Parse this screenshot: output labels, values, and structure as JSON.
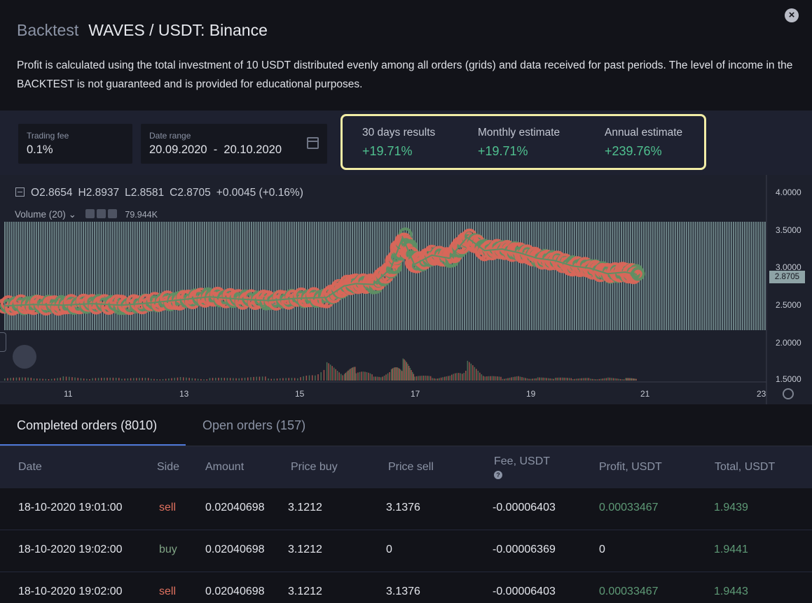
{
  "header": {
    "title_prefix": "Backtest",
    "title": "WAVES / USDT: Binance",
    "disclaimer": "Profit is calculated using the total investment of 10 USDT distributed evenly among all orders (grids) and data received for past periods. The level of income in the BACKTEST is not guaranteed and is provided for educational purposes.",
    "close_icon": "close-icon"
  },
  "settings": {
    "trading_fee_label": "Trading fee",
    "trading_fee_value": "0.1%",
    "date_range_label": "Date range",
    "date_range_value": "20.09.2020  -  20.10.2020",
    "calendar_icon": "calendar-icon"
  },
  "results": [
    {
      "label": "30 days results",
      "value": "+19.71%"
    },
    {
      "label": "Monthly estimate",
      "value": "+19.71%"
    },
    {
      "label": "Annual estimate",
      "value": "+239.76%"
    }
  ],
  "chart": {
    "ohlc": {
      "o_label": "O",
      "o": "2.8654",
      "h_label": "H",
      "h": "2.8937",
      "l_label": "L",
      "l": "2.8581",
      "c_label": "C",
      "c": "2.8705",
      "change": "+0.0045 (+0.16%)"
    },
    "volume_label": "Volume (20)",
    "volume_value": "79.944K",
    "last_price": "2.8705",
    "price_ticks": [
      "4.0000",
      "3.5000",
      "3.0000",
      "2.5000",
      "2.0000",
      "1.5000"
    ],
    "time_ticks": [
      "11",
      "13",
      "15",
      "17",
      "19",
      "21",
      "23"
    ],
    "colors": {
      "buy": "#5e8f64",
      "sell": "#d9665a",
      "grid_bars": "#7d9798",
      "background": "#1d202c"
    }
  },
  "chart_data": {
    "type": "line",
    "x": [
      10,
      10.5,
      11,
      11.5,
      12,
      12.5,
      13,
      13.5,
      14,
      14.5,
      15,
      15.5,
      15.8,
      16,
      16.3,
      16.6,
      16.8,
      17,
      17.3,
      17.6,
      17.9,
      18.2,
      18.5,
      18.8,
      19.1,
      19.4,
      19.7,
      20,
      20.3,
      20.6,
      20.8
    ],
    "series": [
      {
        "values": [
          2.46,
          2.48,
          2.47,
          2.49,
          2.47,
          2.5,
          2.54,
          2.58,
          2.55,
          2.53,
          2.56,
          2.57,
          2.72,
          2.75,
          2.74,
          2.95,
          3.35,
          3.0,
          3.12,
          3.08,
          3.35,
          3.18,
          3.2,
          3.15,
          3.08,
          3.05,
          2.98,
          2.95,
          2.88,
          2.9,
          2.87
        ]
      }
    ],
    "ylim": [
      1.5,
      4.0
    ],
    "xlim": [
      10,
      23
    ],
    "volume": [
      0.1,
      0.05,
      0.08,
      0.05,
      0.06,
      0.05,
      0.07,
      0.05,
      0.06,
      0.08,
      0.05,
      0.35,
      0.15,
      0.3,
      0.1,
      0.22,
      0.45,
      0.12,
      0.08,
      0.1,
      0.38,
      0.1,
      0.07,
      0.09,
      0.06,
      0.06,
      0.05,
      0.05,
      0.06,
      0.05,
      0.04
    ],
    "grid": false,
    "legend": "none"
  },
  "tabs": [
    {
      "label": "Completed orders (8010)",
      "active": true
    },
    {
      "label": "Open orders (157)",
      "active": false
    }
  ],
  "table": {
    "columns": [
      "Date",
      "Side",
      "Amount",
      "Price buy",
      "Price sell",
      "Fee, USDT",
      "Profit, USDT",
      "Total, USDT"
    ],
    "rows": [
      [
        "18-10-2020 19:01:00",
        "sell",
        "0.02040698",
        "3.1212",
        "3.1376",
        "-0.00006403",
        "0.00033467",
        "1.9439"
      ],
      [
        "18-10-2020 19:02:00",
        "buy",
        "0.02040698",
        "3.1212",
        "0",
        "-0.00006369",
        "0",
        "1.9441"
      ],
      [
        "18-10-2020 19:02:00",
        "sell",
        "0.02040698",
        "3.1212",
        "3.1376",
        "-0.00006403",
        "0.00033467",
        "1.9443"
      ]
    ]
  }
}
